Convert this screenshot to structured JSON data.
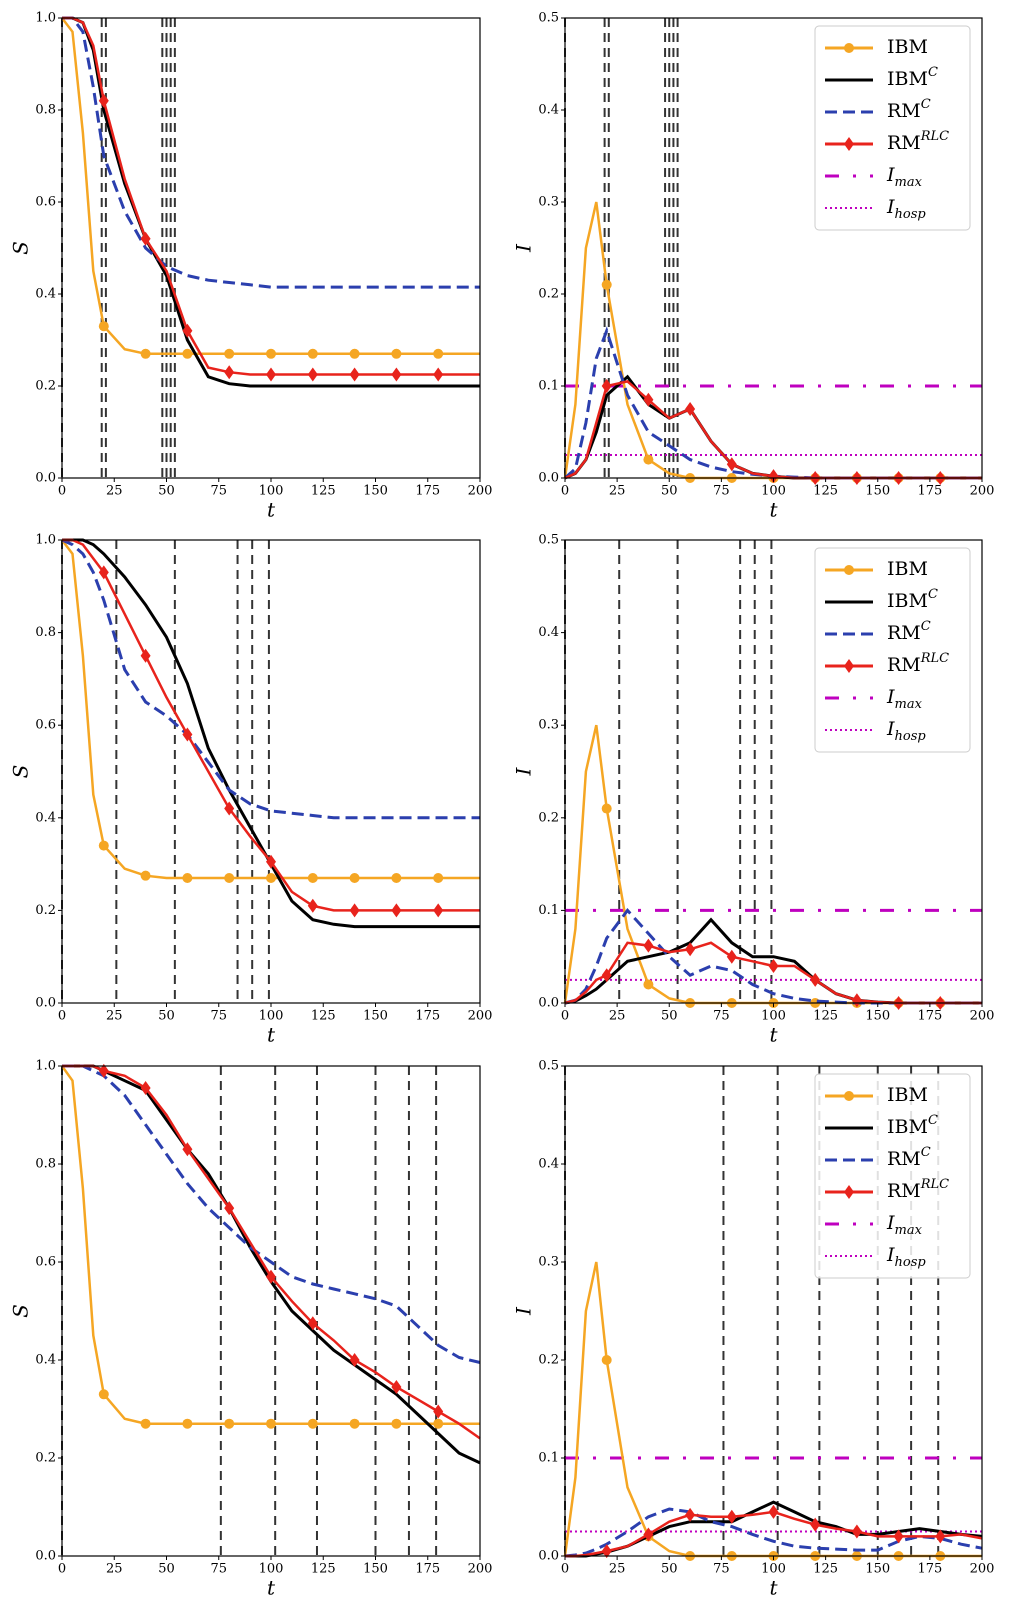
{
  "chart_data": [
    {
      "type": "line",
      "ylabel": "S",
      "xlabel": "t",
      "x": [
        0,
        5,
        10,
        15,
        20,
        30,
        40,
        50,
        60,
        70,
        80,
        90,
        100,
        110,
        120,
        130,
        140,
        150,
        160,
        170,
        180,
        190,
        200
      ],
      "xlim": [
        0,
        200
      ],
      "xticks": [
        0,
        25,
        50,
        75,
        100,
        125,
        150,
        175,
        200
      ],
      "ylim": [
        0,
        1
      ],
      "yticks": [
        {
          "value": 0,
          "label": "0.0"
        },
        0.2,
        0.4,
        0.6,
        0.8,
        {
          "value": 1,
          "label": "1.0"
        }
      ],
      "vlines": [
        0,
        19,
        21,
        48,
        50,
        52,
        54
      ],
      "series": [
        {
          "color": "#f5a623",
          "style": "solid",
          "marker": "circle",
          "values": [
            1.0,
            0.97,
            0.75,
            0.45,
            0.33,
            0.28,
            0.27,
            0.27,
            0.27,
            0.27,
            0.27,
            0.27,
            0.27,
            0.27,
            0.27,
            0.27,
            0.27,
            0.27,
            0.27,
            0.27,
            0.27,
            0.27,
            0.27
          ]
        },
        {
          "color": "#000000",
          "style": "solid",
          "values": [
            1.0,
            1.0,
            0.99,
            0.93,
            0.8,
            0.64,
            0.52,
            0.44,
            0.3,
            0.22,
            0.205,
            0.2,
            0.2,
            0.2,
            0.2,
            0.2,
            0.2,
            0.2,
            0.2,
            0.2,
            0.2,
            0.2,
            0.2
          ]
        },
        {
          "color": "#2b3fae",
          "style": "dashed",
          "values": [
            1.0,
            1.0,
            0.97,
            0.85,
            0.7,
            0.58,
            0.5,
            0.46,
            0.44,
            0.43,
            0.425,
            0.42,
            0.415,
            0.415,
            0.415,
            0.415,
            0.415,
            0.415,
            0.415,
            0.415,
            0.415,
            0.415,
            0.415
          ]
        },
        {
          "color": "#e8231c",
          "style": "solid",
          "marker": "diamond",
          "values": [
            1.0,
            1.0,
            0.99,
            0.94,
            0.82,
            0.65,
            0.52,
            0.45,
            0.32,
            0.24,
            0.23,
            0.225,
            0.225,
            0.225,
            0.225,
            0.225,
            0.225,
            0.225,
            0.225,
            0.225,
            0.225,
            0.225,
            0.225
          ]
        }
      ]
    },
    {
      "type": "line",
      "ylabel": "I",
      "xlabel": "t",
      "legend": "upper right",
      "x": [
        0,
        5,
        10,
        15,
        20,
        30,
        40,
        50,
        60,
        70,
        80,
        90,
        100,
        110,
        120,
        130,
        140,
        150,
        160,
        170,
        180,
        190,
        200
      ],
      "xlim": [
        0,
        200
      ],
      "xticks": [
        0,
        25,
        50,
        75,
        100,
        125,
        150,
        175,
        200
      ],
      "ylim": [
        0,
        0.5
      ],
      "yticks": [
        {
          "value": 0,
          "label": "0.0"
        },
        0.1,
        0.2,
        0.3,
        0.4,
        0.5
      ],
      "vlines": [
        0,
        19,
        21,
        48,
        50,
        52,
        54
      ],
      "series": [
        {
          "name": "IBM",
          "color": "#f5a623",
          "style": "solid",
          "marker": "circle",
          "values": [
            0,
            0.08,
            0.25,
            0.3,
            0.21,
            0.08,
            0.02,
            0.005,
            0,
            0,
            0,
            0,
            0,
            0,
            0,
            0,
            0,
            0,
            0,
            0,
            0,
            0,
            0
          ]
        },
        {
          "name": "IBM^C",
          "color": "#000000",
          "style": "solid",
          "values": [
            0,
            0.005,
            0.02,
            0.05,
            0.09,
            0.11,
            0.08,
            0.065,
            0.075,
            0.04,
            0.015,
            0.005,
            0.002,
            0,
            0,
            0,
            0,
            0,
            0,
            0,
            0,
            0,
            0
          ]
        },
        {
          "name": "RM^C",
          "color": "#2b3fae",
          "style": "dashed",
          "values": [
            0,
            0.01,
            0.06,
            0.13,
            0.16,
            0.09,
            0.05,
            0.035,
            0.02,
            0.012,
            0.007,
            0.004,
            0.002,
            0.001,
            0,
            0,
            0,
            0,
            0,
            0,
            0,
            0,
            0
          ]
        },
        {
          "name": "RM^RLC",
          "color": "#e8231c",
          "style": "solid",
          "marker": "diamond",
          "values": [
            0,
            0.005,
            0.02,
            0.06,
            0.1,
            0.105,
            0.085,
            0.065,
            0.075,
            0.04,
            0.015,
            0.005,
            0.002,
            0,
            0,
            0,
            0,
            0,
            0,
            0,
            0,
            0,
            0
          ]
        }
      ],
      "hlines": [
        {
          "name": "I_max",
          "value": 0.1,
          "color": "#bf00bf",
          "style": "dashdot"
        },
        {
          "name": "I_hosp",
          "value": 0.025,
          "color": "#bf00bf",
          "style": "dotted"
        }
      ]
    },
    {
      "type": "line",
      "ylabel": "S",
      "xlabel": "t",
      "x": [
        0,
        5,
        10,
        15,
        20,
        30,
        40,
        50,
        60,
        70,
        80,
        90,
        100,
        110,
        120,
        130,
        140,
        150,
        160,
        170,
        180,
        190,
        200
      ],
      "xlim": [
        0,
        200
      ],
      "xticks": [
        0,
        25,
        50,
        75,
        100,
        125,
        150,
        175,
        200
      ],
      "ylim": [
        0,
        1
      ],
      "yticks": [
        {
          "value": 0,
          "label": "0.0"
        },
        0.2,
        0.4,
        0.6,
        0.8,
        {
          "value": 1,
          "label": "1.0"
        }
      ],
      "vlines": [
        0,
        26,
        54,
        84,
        91,
        99
      ],
      "series": [
        {
          "color": "#f5a623",
          "style": "solid",
          "marker": "circle",
          "values": [
            1.0,
            0.97,
            0.75,
            0.45,
            0.34,
            0.29,
            0.275,
            0.27,
            0.27,
            0.27,
            0.27,
            0.27,
            0.27,
            0.27,
            0.27,
            0.27,
            0.27,
            0.27,
            0.27,
            0.27,
            0.27,
            0.27,
            0.27
          ]
        },
        {
          "color": "#000000",
          "style": "solid",
          "values": [
            1.0,
            1.0,
            1.0,
            0.99,
            0.97,
            0.92,
            0.86,
            0.79,
            0.69,
            0.55,
            0.46,
            0.38,
            0.3,
            0.22,
            0.18,
            0.17,
            0.165,
            0.165,
            0.165,
            0.165,
            0.165,
            0.165,
            0.165
          ]
        },
        {
          "color": "#2b3fae",
          "style": "dashed",
          "values": [
            1.0,
            0.99,
            0.97,
            0.93,
            0.87,
            0.72,
            0.65,
            0.62,
            0.58,
            0.52,
            0.46,
            0.43,
            0.415,
            0.41,
            0.405,
            0.4,
            0.4,
            0.4,
            0.4,
            0.4,
            0.4,
            0.4,
            0.4
          ]
        },
        {
          "color": "#e8231c",
          "style": "solid",
          "marker": "diamond",
          "values": [
            1.0,
            1.0,
            0.99,
            0.96,
            0.93,
            0.84,
            0.75,
            0.66,
            0.58,
            0.5,
            0.42,
            0.36,
            0.305,
            0.24,
            0.21,
            0.2,
            0.2,
            0.2,
            0.2,
            0.2,
            0.2,
            0.2,
            0.2
          ]
        }
      ]
    },
    {
      "type": "line",
      "ylabel": "I",
      "xlabel": "t",
      "legend": "upper right",
      "x": [
        0,
        5,
        10,
        15,
        20,
        30,
        40,
        50,
        60,
        70,
        80,
        90,
        100,
        110,
        120,
        130,
        140,
        150,
        160,
        170,
        180,
        190,
        200
      ],
      "xlim": [
        0,
        200
      ],
      "xticks": [
        0,
        25,
        50,
        75,
        100,
        125,
        150,
        175,
        200
      ],
      "ylim": [
        0,
        0.5
      ],
      "yticks": [
        {
          "value": 0,
          "label": "0.0"
        },
        0.1,
        0.2,
        0.3,
        0.4,
        0.5
      ],
      "vlines": [
        0,
        26,
        54,
        84,
        91,
        99
      ],
      "series": [
        {
          "name": "IBM",
          "color": "#f5a623",
          "style": "solid",
          "marker": "circle",
          "values": [
            0,
            0.08,
            0.25,
            0.3,
            0.21,
            0.08,
            0.02,
            0.005,
            0,
            0,
            0,
            0,
            0,
            0,
            0,
            0,
            0,
            0,
            0,
            0,
            0,
            0,
            0
          ]
        },
        {
          "name": "IBM^C",
          "color": "#000000",
          "style": "solid",
          "values": [
            0,
            0.002,
            0.008,
            0.015,
            0.025,
            0.045,
            0.05,
            0.055,
            0.065,
            0.09,
            0.065,
            0.05,
            0.05,
            0.045,
            0.025,
            0.01,
            0.003,
            0.001,
            0,
            0,
            0,
            0,
            0
          ]
        },
        {
          "name": "RM^C",
          "color": "#2b3fae",
          "style": "dashed",
          "values": [
            0,
            0.003,
            0.015,
            0.04,
            0.07,
            0.1,
            0.075,
            0.05,
            0.03,
            0.04,
            0.035,
            0.02,
            0.01,
            0.005,
            0.002,
            0.001,
            0,
            0,
            0,
            0,
            0,
            0,
            0
          ]
        },
        {
          "name": "RM^RLC",
          "color": "#e8231c",
          "style": "solid",
          "marker": "diamond",
          "values": [
            0,
            0.003,
            0.012,
            0.025,
            0.03,
            0.065,
            0.062,
            0.055,
            0.058,
            0.065,
            0.05,
            0.045,
            0.04,
            0.04,
            0.025,
            0.01,
            0.003,
            0.001,
            0,
            0,
            0,
            0,
            0
          ]
        }
      ],
      "hlines": [
        {
          "name": "I_max",
          "value": 0.1,
          "color": "#bf00bf",
          "style": "dashdot"
        },
        {
          "name": "I_hosp",
          "value": 0.025,
          "color": "#bf00bf",
          "style": "dotted"
        }
      ]
    },
    {
      "type": "line",
      "ylabel": "S",
      "xlabel": "t",
      "x": [
        0,
        5,
        10,
        15,
        20,
        30,
        40,
        50,
        60,
        70,
        80,
        90,
        100,
        110,
        120,
        130,
        140,
        150,
        160,
        170,
        180,
        190,
        200
      ],
      "xlim": [
        0,
        200
      ],
      "xticks": [
        0,
        25,
        50,
        75,
        100,
        125,
        150,
        175,
        200
      ],
      "ylim": [
        0,
        1
      ],
      "yticks": [
        {
          "value": 0,
          "label": "0.0"
        },
        0.2,
        0.4,
        0.6,
        0.8,
        {
          "value": 1,
          "label": "1.0"
        }
      ],
      "vlines": [
        0,
        76,
        102,
        122,
        150,
        166,
        179
      ],
      "series": [
        {
          "color": "#f5a623",
          "style": "solid",
          "marker": "circle",
          "values": [
            1.0,
            0.97,
            0.75,
            0.45,
            0.33,
            0.28,
            0.27,
            0.27,
            0.27,
            0.27,
            0.27,
            0.27,
            0.27,
            0.27,
            0.27,
            0.27,
            0.27,
            0.27,
            0.27,
            0.27,
            0.27,
            0.27,
            0.27
          ]
        },
        {
          "color": "#000000",
          "style": "solid",
          "values": [
            1.0,
            1.0,
            1.0,
            1.0,
            0.99,
            0.97,
            0.95,
            0.89,
            0.83,
            0.78,
            0.71,
            0.63,
            0.56,
            0.5,
            0.46,
            0.42,
            0.39,
            0.36,
            0.33,
            0.29,
            0.25,
            0.21,
            0.19
          ]
        },
        {
          "color": "#2b3fae",
          "style": "dashed",
          "values": [
            1.0,
            1.0,
            1.0,
            0.99,
            0.98,
            0.94,
            0.88,
            0.82,
            0.76,
            0.71,
            0.67,
            0.63,
            0.6,
            0.57,
            0.555,
            0.545,
            0.535,
            0.525,
            0.51,
            0.47,
            0.43,
            0.405,
            0.395
          ]
        },
        {
          "color": "#e8231c",
          "style": "solid",
          "marker": "diamond",
          "values": [
            1.0,
            1.0,
            1.0,
            1.0,
            0.99,
            0.98,
            0.955,
            0.9,
            0.83,
            0.77,
            0.71,
            0.64,
            0.57,
            0.52,
            0.475,
            0.44,
            0.4,
            0.375,
            0.345,
            0.32,
            0.295,
            0.27,
            0.24
          ]
        }
      ]
    },
    {
      "type": "line",
      "ylabel": "I",
      "xlabel": "t",
      "legend": "upper right",
      "x": [
        0,
        5,
        10,
        15,
        20,
        30,
        40,
        50,
        60,
        70,
        80,
        90,
        100,
        110,
        120,
        130,
        140,
        150,
        160,
        170,
        180,
        190,
        200
      ],
      "xlim": [
        0,
        200
      ],
      "xticks": [
        0,
        25,
        50,
        75,
        100,
        125,
        150,
        175,
        200
      ],
      "ylim": [
        0,
        0.5
      ],
      "yticks": [
        {
          "value": 0,
          "label": "0.0"
        },
        0.1,
        0.2,
        0.3,
        0.4,
        0.5
      ],
      "vlines": [
        0,
        76,
        102,
        122,
        150,
        166,
        179
      ],
      "series": [
        {
          "name": "IBM",
          "color": "#f5a623",
          "style": "solid",
          "marker": "circle",
          "values": [
            0,
            0.08,
            0.25,
            0.3,
            0.2,
            0.07,
            0.02,
            0.005,
            0,
            0,
            0,
            0,
            0,
            0,
            0,
            0,
            0,
            0,
            0,
            0,
            0,
            0,
            0
          ]
        },
        {
          "name": "IBM^C",
          "color": "#000000",
          "style": "solid",
          "values": [
            0,
            0,
            0,
            0.002,
            0.004,
            0.01,
            0.02,
            0.03,
            0.035,
            0.035,
            0.035,
            0.045,
            0.055,
            0.045,
            0.035,
            0.03,
            0.022,
            0.022,
            0.025,
            0.028,
            0.025,
            0.022,
            0.02
          ]
        },
        {
          "name": "RM^C",
          "color": "#2b3fae",
          "style": "dashed",
          "values": [
            0,
            0.001,
            0.003,
            0.007,
            0.012,
            0.025,
            0.04,
            0.048,
            0.045,
            0.035,
            0.03,
            0.022,
            0.015,
            0.01,
            0.008,
            0.007,
            0.006,
            0.006,
            0.015,
            0.02,
            0.018,
            0.012,
            0.008
          ]
        },
        {
          "name": "RM^RLC",
          "color": "#e8231c",
          "style": "solid",
          "marker": "diamond",
          "values": [
            0,
            0,
            0.001,
            0.003,
            0.005,
            0.01,
            0.022,
            0.035,
            0.042,
            0.04,
            0.04,
            0.042,
            0.045,
            0.038,
            0.032,
            0.028,
            0.025,
            0.02,
            0.02,
            0.02,
            0.02,
            0.022,
            0.018
          ]
        }
      ],
      "hlines": [
        {
          "name": "I_max",
          "value": 0.1,
          "color": "#bf00bf",
          "style": "dashdot"
        },
        {
          "name": "I_hosp",
          "value": 0.025,
          "color": "#bf00bf",
          "style": "dotted"
        }
      ]
    }
  ]
}
